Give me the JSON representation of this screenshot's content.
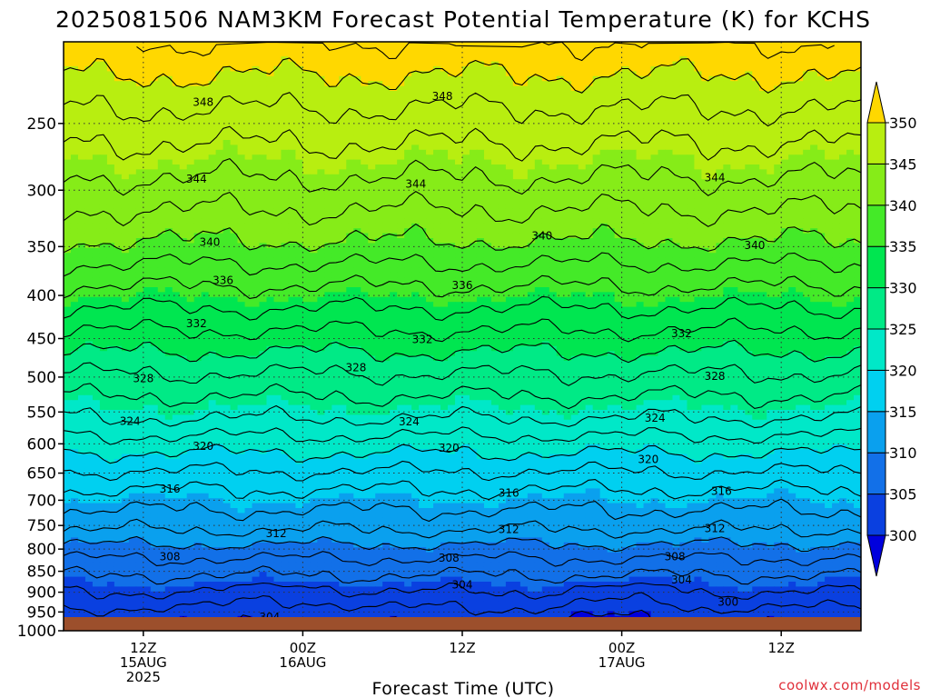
{
  "title": "2025081506 NAM3KM Forecast Potential Temperature (K) for KCHS",
  "xlabel": "Forecast Time (UTC)",
  "credit": "coolwx.com/models",
  "colors": {
    "ground": "#9c4f2c",
    "contour": "#000000",
    "band_fills": [
      "#0000dd",
      "#0a40e0",
      "#1270e8",
      "#0aa0ee",
      "#00d0f0",
      "#00e8c8",
      "#00ea86",
      "#00e650",
      "#44ea28",
      "#86ec18",
      "#b8ee10",
      "#ffff00",
      "#ffd800"
    ]
  },
  "chart_data": {
    "type": "heatmap",
    "title": "2025081506 NAM3KM Forecast Potential Temperature (K) for KCHS",
    "xlabel": "Forecast Time (UTC)",
    "ylabel": "",
    "x_ticks": [
      {
        "hour": 6,
        "lines": [
          "12Z",
          "15AUG",
          "2025"
        ]
      },
      {
        "hour": 18,
        "lines": [
          "00Z",
          "16AUG"
        ]
      },
      {
        "hour": 30,
        "lines": [
          "12Z"
        ]
      },
      {
        "hour": 42,
        "lines": [
          "00Z",
          "17AUG"
        ]
      },
      {
        "hour": 54,
        "lines": [
          "12Z"
        ]
      }
    ],
    "x_range_hours": [
      0,
      60
    ],
    "y_scale": "log",
    "y_range_hPa": [
      200,
      1000
    ],
    "y_ticks": [
      250,
      300,
      350,
      400,
      450,
      500,
      550,
      600,
      650,
      700,
      750,
      800,
      850,
      900,
      950,
      1000
    ],
    "grid": "dotted",
    "colorbar": {
      "position": "right",
      "levels": [
        300,
        305,
        310,
        315,
        320,
        325,
        330,
        335,
        340,
        345,
        350
      ],
      "labels": [
        "300",
        "305",
        "310",
        "315",
        "320",
        "325",
        "330",
        "335",
        "340",
        "345",
        "350"
      ],
      "extend": "both"
    },
    "contour_interval_K": 2,
    "contour_labels": [
      {
        "value": 348,
        "hour": 10.5,
        "p": 236
      },
      {
        "value": 348,
        "hour": 28.5,
        "p": 232
      },
      {
        "value": 344,
        "hour": 10,
        "p": 291
      },
      {
        "value": 344,
        "hour": 26.5,
        "p": 295
      },
      {
        "value": 344,
        "hour": 49,
        "p": 290
      },
      {
        "value": 340,
        "hour": 11,
        "p": 346
      },
      {
        "value": 340,
        "hour": 36,
        "p": 340
      },
      {
        "value": 340,
        "hour": 52,
        "p": 349
      },
      {
        "value": 336,
        "hour": 12,
        "p": 384
      },
      {
        "value": 336,
        "hour": 30,
        "p": 389
      },
      {
        "value": 332,
        "hour": 10,
        "p": 432
      },
      {
        "value": 332,
        "hour": 27,
        "p": 451
      },
      {
        "value": 332,
        "hour": 46.5,
        "p": 444
      },
      {
        "value": 328,
        "hour": 6,
        "p": 502
      },
      {
        "value": 328,
        "hour": 22,
        "p": 487
      },
      {
        "value": 328,
        "hour": 49,
        "p": 499
      },
      {
        "value": 324,
        "hour": 5,
        "p": 564
      },
      {
        "value": 324,
        "hour": 26,
        "p": 565
      },
      {
        "value": 324,
        "hour": 44.5,
        "p": 559
      },
      {
        "value": 320,
        "hour": 10.5,
        "p": 604
      },
      {
        "value": 320,
        "hour": 29,
        "p": 607
      },
      {
        "value": 320,
        "hour": 44,
        "p": 626
      },
      {
        "value": 316,
        "hour": 8,
        "p": 679
      },
      {
        "value": 316,
        "hour": 33.5,
        "p": 686
      },
      {
        "value": 316,
        "hour": 49.5,
        "p": 683
      },
      {
        "value": 312,
        "hour": 16,
        "p": 767
      },
      {
        "value": 312,
        "hour": 33.5,
        "p": 758
      },
      {
        "value": 312,
        "hour": 49,
        "p": 756
      },
      {
        "value": 308,
        "hour": 8,
        "p": 817
      },
      {
        "value": 308,
        "hour": 29,
        "p": 820
      },
      {
        "value": 308,
        "hour": 46,
        "p": 817
      },
      {
        "value": 304,
        "hour": 15.5,
        "p": 963
      },
      {
        "value": 304,
        "hour": 30,
        "p": 882
      },
      {
        "value": 304,
        "hour": 46.5,
        "p": 870
      },
      {
        "value": 300,
        "hour": 50,
        "p": 925
      },
      {
        "value": 300,
        "hour": 23,
        "p": 987
      }
    ]
  }
}
